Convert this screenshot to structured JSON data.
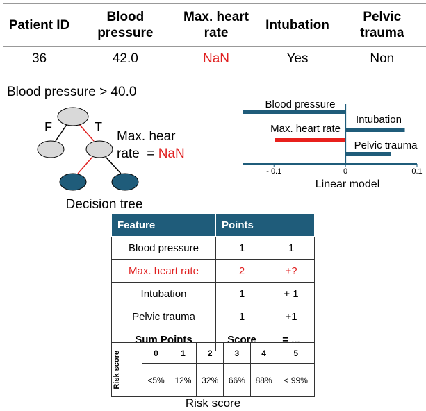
{
  "patient_table": {
    "headers": [
      "Patient ID",
      "Blood pressure",
      "Max. heart rate",
      "Intubation",
      "Pelvic trauma"
    ],
    "rows": [
      [
        "36",
        "42.0",
        "NaN",
        "Yes",
        "Non"
      ]
    ]
  },
  "decision_tree": {
    "condition": "Blood pressure > 40.0",
    "false_label": "F",
    "true_label": "T",
    "note_lines": [
      "Max. hear",
      "rate  ="
    ],
    "note_value": "NaN",
    "caption": "Decision tree"
  },
  "linear_model": {
    "type": "bar",
    "xlabel": "Linear model",
    "categories": [
      "Blood pressure",
      "Intubation",
      "Max. heart rate",
      "Pelvic trauma"
    ],
    "values": [
      -0.143,
      0.083,
      -0.099,
      0.064
    ],
    "colors": [
      "#1f5c7a",
      "#1f5c7a",
      "#e8201c",
      "#1f5c7a"
    ],
    "xlim": [
      -0.143,
      0.1
    ],
    "xticks": [
      {
        "value": -0.1,
        "label": "- 0.1"
      },
      0,
      0.1
    ]
  },
  "risk_table": {
    "headers": [
      "Feature",
      "Points"
    ],
    "rows": [
      [
        "Blood pressure",
        "1",
        "1"
      ],
      [
        "Max. heart rate",
        "2",
        "+?"
      ],
      [
        "Intubation",
        "1",
        "+ 1"
      ],
      [
        "Pelvic trauma",
        "1",
        "+1"
      ],
      [
        "Sum Points",
        "Score",
        "= ..."
      ]
    ],
    "risk_label": "Risk score",
    "scores": [
      "0",
      "1",
      "2",
      "3",
      "4",
      "5"
    ],
    "risks": [
      "<5%",
      "12%",
      "32%",
      "66%",
      "88%",
      "< 99%"
    ],
    "caption": "Risk score"
  }
}
